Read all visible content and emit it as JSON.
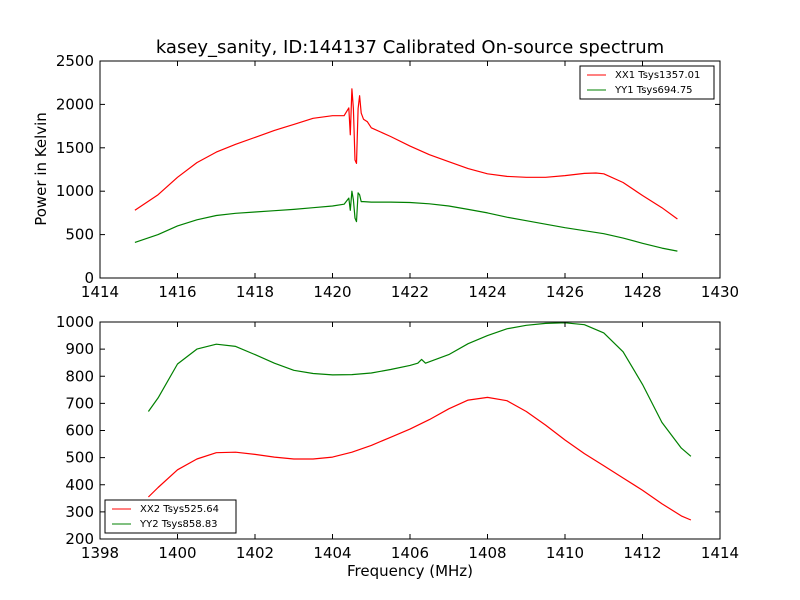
{
  "figure_title": "kasey_sanity, ID:144137 Calibrated On-source spectrum",
  "chart_data": [
    {
      "type": "line",
      "panel": "top",
      "title": "kasey_sanity, ID:144137 Calibrated On-source spectrum",
      "xlabel": "",
      "ylabel": "Power in Kelvin",
      "xlim": [
        1414,
        1430
      ],
      "ylim": [
        0,
        2500
      ],
      "xticks": [
        1414,
        1416,
        1418,
        1420,
        1422,
        1424,
        1426,
        1428,
        1430
      ],
      "yticks": [
        0,
        500,
        1000,
        1500,
        2000,
        2500
      ],
      "legend_position": "top-right",
      "series": [
        {
          "name": "XX1 Tsys1357.01",
          "color": "#ff0000",
          "points": [
            [
              1414.9,
              780
            ],
            [
              1415.5,
              960
            ],
            [
              1416,
              1160
            ],
            [
              1416.5,
              1330
            ],
            [
              1417,
              1450
            ],
            [
              1417.5,
              1540
            ],
            [
              1418,
              1620
            ],
            [
              1418.5,
              1700
            ],
            [
              1419,
              1770
            ],
            [
              1419.5,
              1840
            ],
            [
              1420,
              1870
            ],
            [
              1420.3,
              1870
            ],
            [
              1420.42,
              1960
            ],
            [
              1420.46,
              1650
            ],
            [
              1420.5,
              2180
            ],
            [
              1420.54,
              1950
            ],
            [
              1420.58,
              1360
            ],
            [
              1420.62,
              1320
            ],
            [
              1420.66,
              1950
            ],
            [
              1420.7,
              2100
            ],
            [
              1420.74,
              1900
            ],
            [
              1420.8,
              1830
            ],
            [
              1420.9,
              1800
            ],
            [
              1421,
              1730
            ],
            [
              1421.5,
              1630
            ],
            [
              1422,
              1520
            ],
            [
              1422.5,
              1420
            ],
            [
              1423,
              1340
            ],
            [
              1423.5,
              1260
            ],
            [
              1424,
              1200
            ],
            [
              1424.5,
              1170
            ],
            [
              1425,
              1160
            ],
            [
              1425.5,
              1160
            ],
            [
              1426,
              1180
            ],
            [
              1426.5,
              1205
            ],
            [
              1426.8,
              1210
            ],
            [
              1427,
              1200
            ],
            [
              1427.5,
              1100
            ],
            [
              1428,
              950
            ],
            [
              1428.5,
              810
            ],
            [
              1428.9,
              680
            ]
          ]
        },
        {
          "name": "YY1 Tsys694.75",
          "color": "#008000",
          "points": [
            [
              1414.9,
              410
            ],
            [
              1415.5,
              500
            ],
            [
              1416,
              600
            ],
            [
              1416.5,
              670
            ],
            [
              1417,
              720
            ],
            [
              1417.5,
              745
            ],
            [
              1418,
              760
            ],
            [
              1418.5,
              775
            ],
            [
              1419,
              790
            ],
            [
              1419.5,
              810
            ],
            [
              1420,
              830
            ],
            [
              1420.3,
              850
            ],
            [
              1420.42,
              920
            ],
            [
              1420.46,
              780
            ],
            [
              1420.5,
              1000
            ],
            [
              1420.54,
              900
            ],
            [
              1420.58,
              690
            ],
            [
              1420.62,
              650
            ],
            [
              1420.66,
              980
            ],
            [
              1420.7,
              960
            ],
            [
              1420.74,
              880
            ],
            [
              1420.8,
              880
            ],
            [
              1421,
              875
            ],
            [
              1421.5,
              875
            ],
            [
              1422,
              870
            ],
            [
              1422.5,
              855
            ],
            [
              1423,
              830
            ],
            [
              1423.5,
              790
            ],
            [
              1424,
              750
            ],
            [
              1424.5,
              700
            ],
            [
              1425,
              660
            ],
            [
              1425.5,
              620
            ],
            [
              1426,
              580
            ],
            [
              1426.5,
              545
            ],
            [
              1427,
              510
            ],
            [
              1427.5,
              460
            ],
            [
              1428,
              400
            ],
            [
              1428.5,
              345
            ],
            [
              1428.9,
              310
            ]
          ]
        }
      ]
    },
    {
      "type": "line",
      "panel": "bottom",
      "title": "",
      "xlabel": "Frequency (MHz)",
      "ylabel": "",
      "xlim": [
        1398,
        1414
      ],
      "ylim": [
        200,
        1000
      ],
      "xticks": [
        1398,
        1400,
        1402,
        1404,
        1406,
        1408,
        1410,
        1412,
        1414
      ],
      "yticks": [
        200,
        300,
        400,
        500,
        600,
        700,
        800,
        900,
        1000
      ],
      "legend_position": "bottom-left",
      "series": [
        {
          "name": "XX2 Tsys525.64",
          "color": "#ff0000",
          "points": [
            [
              1399.25,
              355
            ],
            [
              1399.5,
              390
            ],
            [
              1400,
              455
            ],
            [
              1400.5,
              495
            ],
            [
              1401,
              518
            ],
            [
              1401.5,
              520
            ],
            [
              1402,
              512
            ],
            [
              1402.5,
              502
            ],
            [
              1403,
              495
            ],
            [
              1403.5,
              495
            ],
            [
              1404,
              502
            ],
            [
              1404.5,
              520
            ],
            [
              1405,
              545
            ],
            [
              1405.5,
              575
            ],
            [
              1406,
              605
            ],
            [
              1406.5,
              640
            ],
            [
              1407,
              680
            ],
            [
              1407.5,
              712
            ],
            [
              1408,
              722
            ],
            [
              1408.5,
              710
            ],
            [
              1409,
              670
            ],
            [
              1409.5,
              620
            ],
            [
              1410,
              565
            ],
            [
              1410.5,
              515
            ],
            [
              1411,
              470
            ],
            [
              1411.5,
              425
            ],
            [
              1412,
              380
            ],
            [
              1412.5,
              330
            ],
            [
              1413,
              285
            ],
            [
              1413.25,
              270
            ]
          ]
        },
        {
          "name": "YY2 Tsys858.83",
          "color": "#008000",
          "points": [
            [
              1399.25,
              670
            ],
            [
              1399.5,
              720
            ],
            [
              1400,
              845
            ],
            [
              1400.5,
              900
            ],
            [
              1401,
              918
            ],
            [
              1401.5,
              910
            ],
            [
              1402,
              880
            ],
            [
              1402.5,
              848
            ],
            [
              1403,
              822
            ],
            [
              1403.5,
              810
            ],
            [
              1404,
              805
            ],
            [
              1404.5,
              806
            ],
            [
              1405,
              812
            ],
            [
              1405.5,
              825
            ],
            [
              1406,
              840
            ],
            [
              1406.2,
              848
            ],
            [
              1406.3,
              862
            ],
            [
              1406.4,
              848
            ],
            [
              1407,
              880
            ],
            [
              1407.5,
              920
            ],
            [
              1408,
              950
            ],
            [
              1408.5,
              975
            ],
            [
              1409,
              988
            ],
            [
              1409.5,
              995
            ],
            [
              1410,
              997
            ],
            [
              1410.5,
              990
            ],
            [
              1411,
              960
            ],
            [
              1411.5,
              890
            ],
            [
              1412,
              770
            ],
            [
              1412.5,
              630
            ],
            [
              1413,
              535
            ],
            [
              1413.25,
              505
            ]
          ]
        }
      ]
    }
  ]
}
